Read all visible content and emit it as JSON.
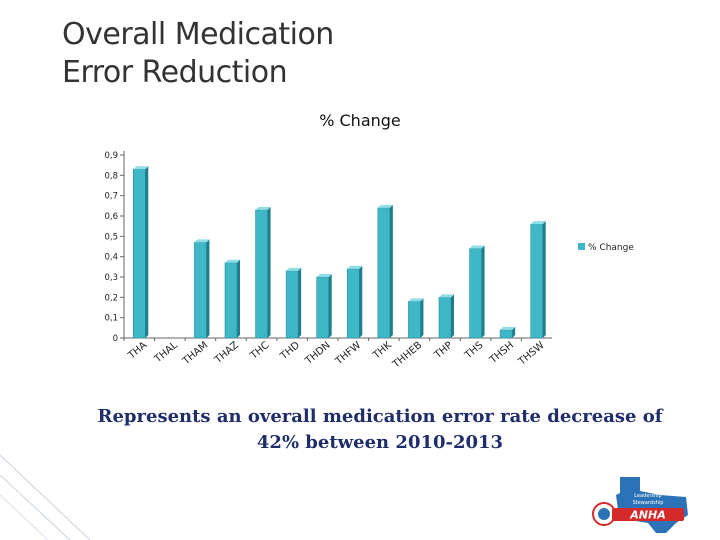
{
  "title": {
    "line1": "Overall Medication",
    "line2": "Error Reduction"
  },
  "caption": {
    "line1": "Represents an overall medication error rate decrease of",
    "line2": "42% between 2010-2013"
  },
  "logo": {
    "text_top": "Leadership",
    "text_mid": "Stewardship",
    "brand": "ANHA"
  },
  "colors": {
    "bar_front": "#3fb7c7",
    "bar_side": "#1f7e8c",
    "bar_top": "#8fdde7",
    "title": "#333333",
    "caption": "#1f2d6b"
  },
  "chart_data": {
    "type": "bar",
    "title": "% Change",
    "xlabel": "",
    "ylabel": "",
    "ylim": [
      0,
      0.9
    ],
    "yticks": [
      "0",
      "0,1",
      "0,2",
      "0,3",
      "0,4",
      "0,5",
      "0,6",
      "0,7",
      "0,8",
      "0,9"
    ],
    "legend": "right",
    "categories": [
      "THA",
      "THAL",
      "THAM",
      "THAZ",
      "THC",
      "THD",
      "THDN",
      "THFW",
      "THK",
      "THHEB",
      "THP",
      "THS",
      "THSH",
      "THSW"
    ],
    "series": [
      {
        "name": "% Change",
        "values": [
          0.83,
          0,
          0.47,
          0.37,
          0.63,
          0.33,
          0.3,
          0.34,
          0.64,
          0.18,
          0.2,
          0.44,
          0.04,
          0.56
        ]
      }
    ]
  }
}
